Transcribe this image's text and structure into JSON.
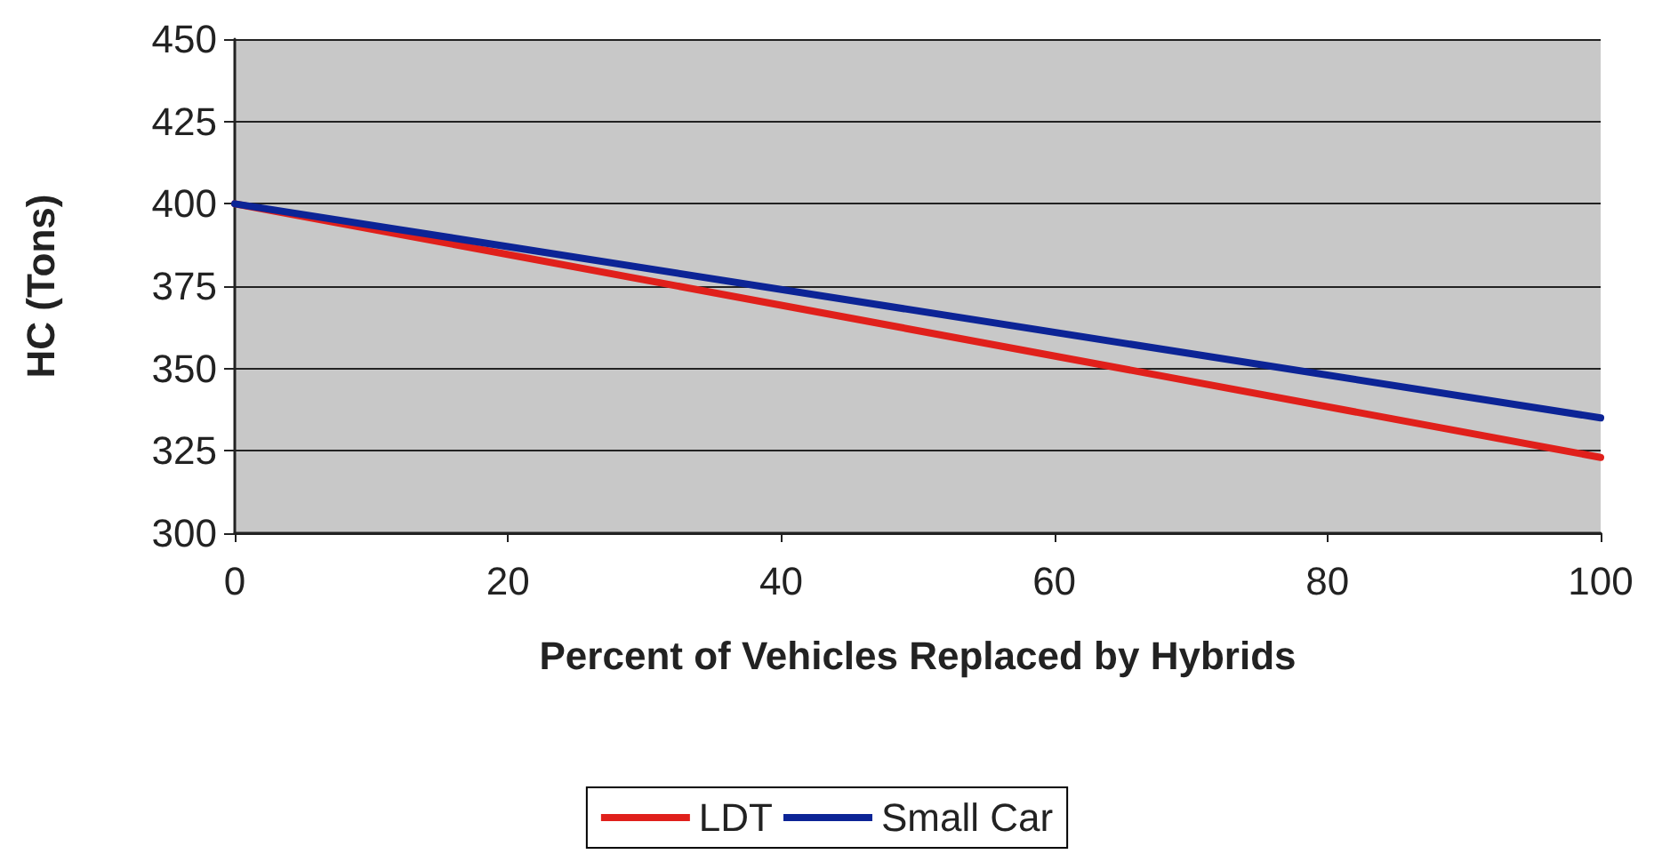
{
  "chart_data": {
    "type": "line",
    "xlabel": "Percent of Vehicles Replaced by Hybrids",
    "ylabel": "HC (Tons)",
    "x": [
      0,
      100
    ],
    "series": [
      {
        "name": "LDT",
        "color": "#e0201b",
        "values": [
          400,
          323
        ]
      },
      {
        "name": "Small Car",
        "color": "#0c2496",
        "values": [
          400,
          335
        ]
      }
    ],
    "xlim": [
      0,
      100
    ],
    "xticks": [
      0,
      20,
      40,
      60,
      80,
      100
    ],
    "ylim": [
      300,
      450
    ],
    "yticks": [
      300,
      325,
      350,
      375,
      400,
      425,
      450
    ],
    "grid": "y",
    "legend": "bottom",
    "marker": "none",
    "line_style": "solid"
  }
}
